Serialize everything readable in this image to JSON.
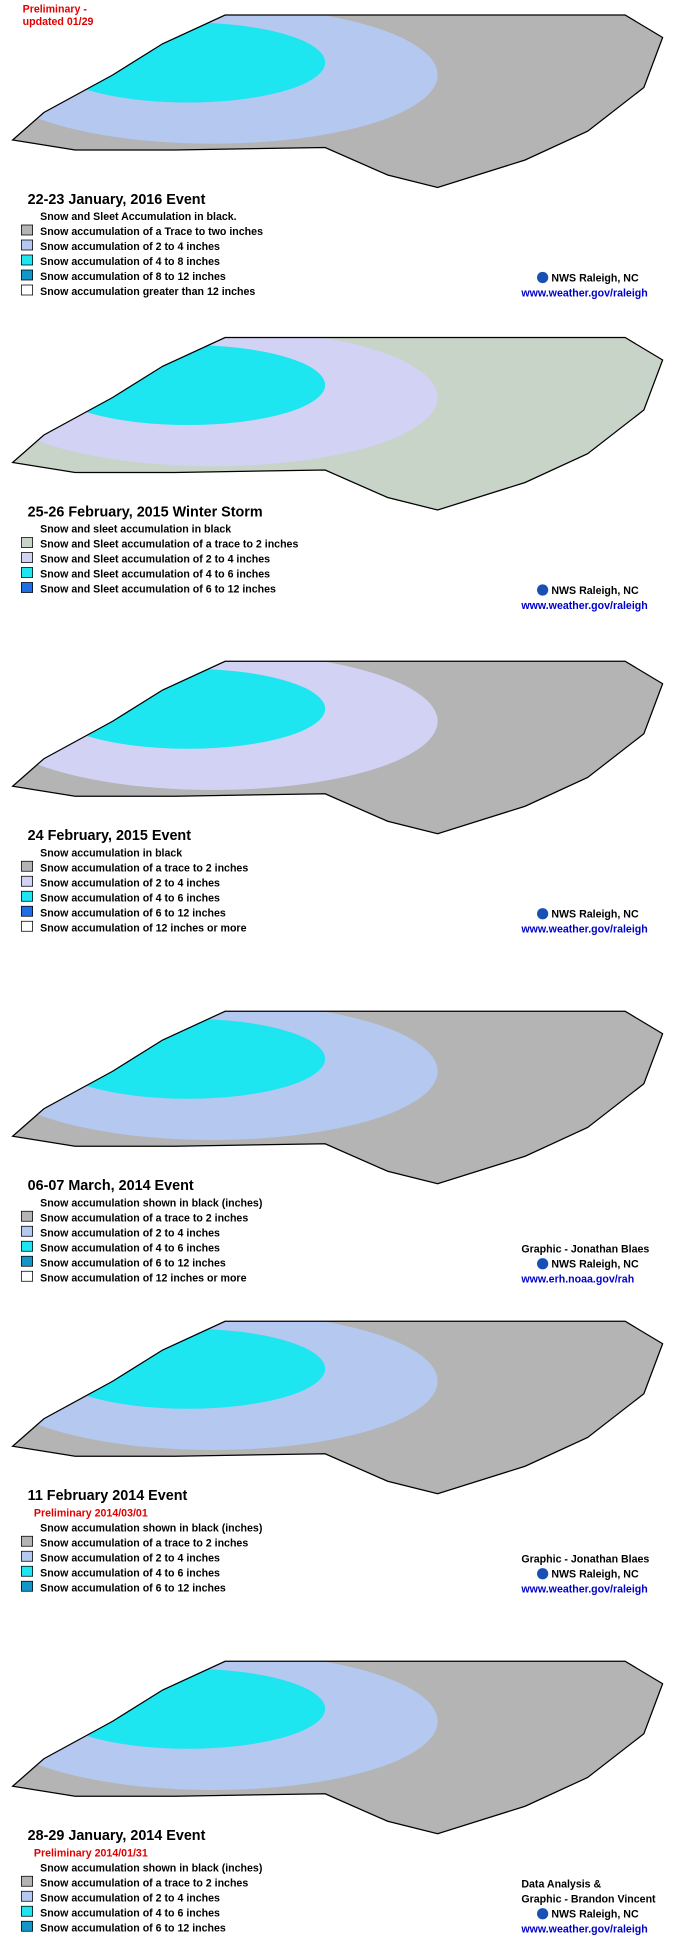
{
  "header": {
    "lines": [
      "Preliminary -",
      "updated 01/29"
    ]
  },
  "panels": [
    {
      "title": "22-23 January, 2016 Event",
      "legend_heading": "Snow and Sleet Accumulation in black.",
      "legend": [
        {
          "label": "Snow accumulation of a Trace to two inches",
          "color": "#b4b4b4"
        },
        {
          "label": "Snow accumulation of 2 to 4 inches",
          "color": "#b4c8f0"
        },
        {
          "label": "Snow accumulation of 4 to 8 inches",
          "color": "#1ee6f0"
        },
        {
          "label": "Snow accumulation of 8 to 12 inches",
          "color": "#1496c8"
        },
        {
          "label": "Snow accumulation greater than 12 inches",
          "color": "#ffffff"
        }
      ],
      "credits": [
        "NWS Raleigh, NC",
        "www.weather.gov/raleigh"
      ]
    },
    {
      "title": "25-26 February, 2015 Winter Storm",
      "legend_heading": "Snow and sleet accumulation in black",
      "legend": [
        {
          "label": "Snow and Sleet accumulation of a trace to 2 inches",
          "color": "#c8d4c8"
        },
        {
          "label": "Snow and Sleet accumulation of 2 to 4 inches",
          "color": "#d2d2f5"
        },
        {
          "label": "Snow and Sleet accumulation of 4 to 6 inches",
          "color": "#1ee6f0"
        },
        {
          "label": "Snow and Sleet accumulation of 6 to 12 inches",
          "color": "#1e6ee6"
        }
      ],
      "credits": [
        "NWS Raleigh, NC",
        "www.weather.gov/raleigh"
      ]
    },
    {
      "title": "24 February, 2015 Event",
      "legend_heading": "Snow accumulation in black",
      "legend": [
        {
          "label": "Snow accumulation of a trace to 2 inches",
          "color": "#b4b4b4"
        },
        {
          "label": "Snow accumulation of 2 to 4 inches",
          "color": "#d2d2f5"
        },
        {
          "label": "Snow accumulation of 4 to 6 inches",
          "color": "#1ee6f0"
        },
        {
          "label": "Snow accumulation of 6 to 12 inches",
          "color": "#1e6ee6"
        },
        {
          "label": "Snow accumulation of 12 inches or more",
          "color": "#ffffff"
        }
      ],
      "credits": [
        "NWS Raleigh, NC",
        "www.weather.gov/raleigh"
      ]
    },
    {
      "title": "06-07 March, 2014 Event",
      "legend_heading": "Snow accumulation shown in black (inches)",
      "legend": [
        {
          "label": "Snow accumulation of a trace to 2 inches",
          "color": "#b4b4b4"
        },
        {
          "label": "Snow accumulation of 2 to 4 inches",
          "color": "#b4c8f0"
        },
        {
          "label": "Snow accumulation of 4 to 6 inches",
          "color": "#1ee6f0"
        },
        {
          "label": "Snow accumulation of 6 to 12 inches",
          "color": "#1496c8"
        },
        {
          "label": "Snow accumulation of 12 inches or more",
          "color": "#ffffff"
        }
      ],
      "credits": [
        "Graphic - Jonathan Blaes",
        "NWS Raleigh, NC",
        "www.erh.noaa.gov/rah"
      ]
    },
    {
      "title": "11 February 2014 Event",
      "preliminary": "Preliminary 2014/03/01",
      "legend_heading": "Snow accumulation shown in black (inches)",
      "legend": [
        {
          "label": "Snow accumulation of a trace to 2 inches",
          "color": "#b4b4b4"
        },
        {
          "label": "Snow accumulation of 2 to 4 inches",
          "color": "#b4c8f0"
        },
        {
          "label": "Snow accumulation of 4 to 6 inches",
          "color": "#1ee6f0"
        },
        {
          "label": "Snow accumulation of 6 to 12 inches",
          "color": "#1496c8"
        }
      ],
      "credits": [
        "Graphic - Jonathan Blaes",
        "NWS Raleigh, NC",
        "www.weather.gov/raleigh"
      ]
    },
    {
      "title": "28-29 January, 2014 Event",
      "preliminary": "Preliminary 2014/01/31",
      "legend_heading": "Snow accumulation shown in black (inches)",
      "legend": [
        {
          "label": "Snow accumulation of a trace to 2 inches",
          "color": "#b4b4b4"
        },
        {
          "label": "Snow accumulation of 2 to 4 inches",
          "color": "#b4c8f0"
        },
        {
          "label": "Snow accumulation of 4 to 6 inches",
          "color": "#1ee6f0"
        },
        {
          "label": "Snow accumulation of 6 to 12 inches",
          "color": "#1496c8"
        }
      ],
      "credits": [
        "Data Analysis &",
        "Graphic - Brandon Vincent",
        "NWS Raleigh, NC",
        "www.weather.gov/raleigh"
      ]
    }
  ]
}
